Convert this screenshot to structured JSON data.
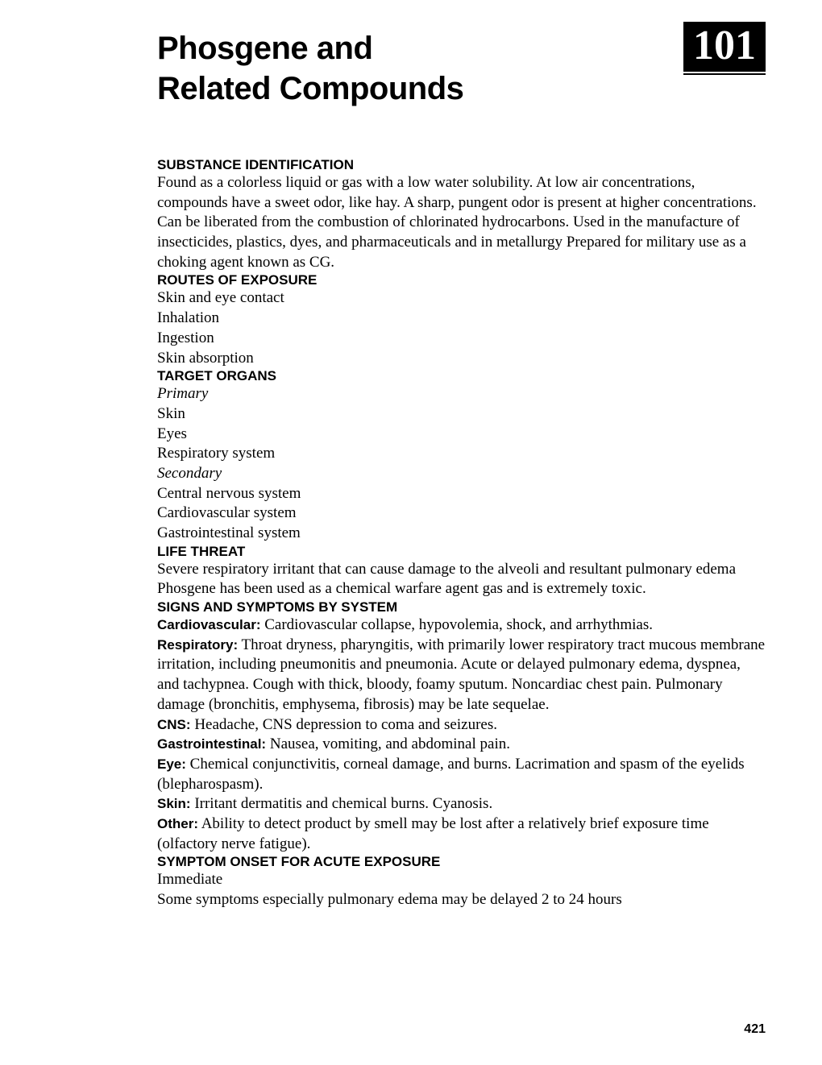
{
  "chapter_number": "101",
  "title_line1": "Phosgene and",
  "title_line2": "Related Compounds",
  "page_number": "421",
  "sections": {
    "substance_id": {
      "heading": "SUBSTANCE IDENTIFICATION",
      "body": "Found as a colorless liquid or gas with a low water solubility. At low air concentrations, compounds have a sweet odor, like hay. A sharp, pungent odor is present at higher concentrations. Can be liberated from the combustion of chlorinated hydrocarbons. Used in the manufacture of insecticides, plastics, dyes, and pharmaceuticals and in metallurgy  Prepared for military use as a choking agent known as CG."
    },
    "routes": {
      "heading": "ROUTES OF EXPOSURE",
      "items": [
        "Skin and eye contact",
        "Inhalation",
        "Ingestion",
        "Skin absorption"
      ]
    },
    "target_organs": {
      "heading": "TARGET ORGANS",
      "primary_label": "Primary",
      "primary_items": [
        "Skin",
        "Eyes",
        "Respiratory system"
      ],
      "secondary_label": "Secondary",
      "secondary_items": [
        "Central nervous system",
        "Cardiovascular system",
        "Gastrointestinal system"
      ]
    },
    "life_threat": {
      "heading": "LIFE THREAT",
      "body": "Severe respiratory irritant that can cause damage to the alveoli and resultant pulmonary edema  Phosgene has been used as a chemical warfare agent gas and is extremely toxic."
    },
    "signs": {
      "heading": "SIGNS AND SYMPTOMS BY SYSTEM",
      "systems": [
        {
          "label": "Cardiovascular:",
          "body": " Cardiovascular collapse, hypovolemia, shock, and arrhythmias."
        },
        {
          "label": "Respiratory:",
          "body": " Throat dryness, pharyngitis, with primarily lower respiratory tract mucous membrane irritation, including pneumonitis and pneumonia. Acute or delayed pulmonary edema, dyspnea, and tachypnea. Cough with thick, bloody, foamy sputum. Noncardiac chest pain. Pulmonary damage (bronchitis, emphysema, fibrosis) may be late sequelae."
        },
        {
          "label": "CNS:",
          "body": " Headache, CNS depression to coma and seizures."
        },
        {
          "label": "Gastrointestinal:",
          "body": " Nausea, vomiting, and abdominal pain."
        },
        {
          "label": "Eye:",
          "body": " Chemical conjunctivitis, corneal damage, and burns. Lacrimation and spasm of the eyelids (blepharospasm)."
        },
        {
          "label": "Skin:",
          "body": " Irritant dermatitis and chemical burns. Cyanosis."
        },
        {
          "label": "Other:",
          "body": " Ability to detect product by smell may be lost after a relatively brief exposure time (olfactory nerve fatigue)."
        }
      ]
    },
    "onset": {
      "heading": "SYMPTOM ONSET FOR ACUTE EXPOSURE",
      "items": [
        "Immediate",
        "Some symptoms especially pulmonary edema may be delayed 2 to 24 hours"
      ]
    }
  }
}
